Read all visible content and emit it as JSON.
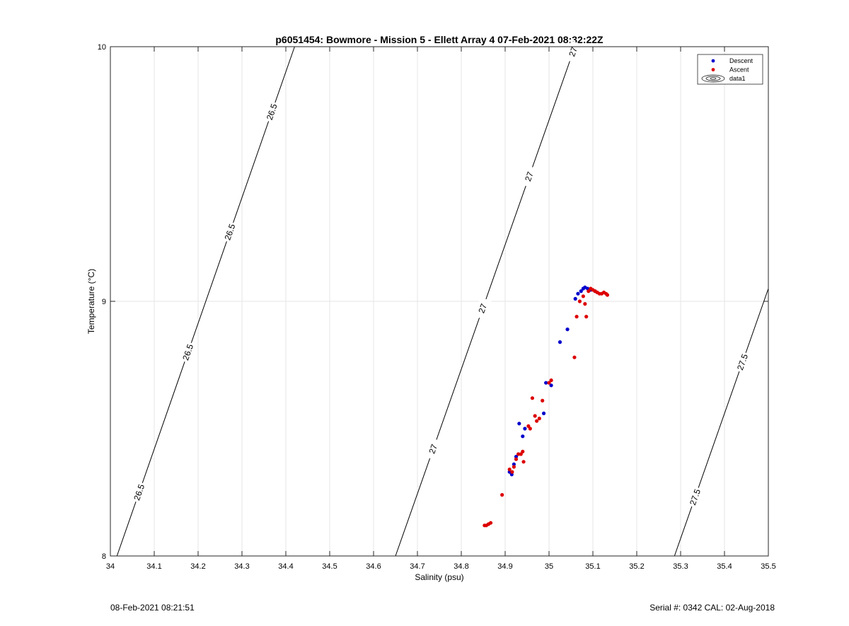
{
  "chart_data": {
    "type": "scatter",
    "title": "p6051454: Bowmore - Mission 5 - Ellett Array 4 07-Feb-2021 08:32:22Z",
    "xlabel": "Salinity (psu)",
    "ylabel": "Temperature (°C)",
    "xlim": [
      34,
      35.5
    ],
    "ylim": [
      8,
      10
    ],
    "x_ticks": [
      "34",
      "34.1",
      "34.2",
      "34.3",
      "34.4",
      "34.5",
      "34.6",
      "34.7",
      "34.8",
      "34.9",
      "35",
      "35.1",
      "35.2",
      "35.3",
      "35.4",
      "35.5"
    ],
    "y_ticks": [
      "8",
      "9",
      "10"
    ],
    "grid": true,
    "legend_position": "top-right",
    "legend": [
      "Descent",
      "Ascent",
      "data1"
    ],
    "series": [
      {
        "name": "Descent",
        "color": "#0000cc",
        "points": [
          [
            34.91,
            8.33
          ],
          [
            34.915,
            8.32
          ],
          [
            34.92,
            8.36
          ],
          [
            34.925,
            8.39
          ],
          [
            34.932,
            8.52
          ],
          [
            34.94,
            8.47
          ],
          [
            34.945,
            8.5
          ],
          [
            34.988,
            8.56
          ],
          [
            34.993,
            8.68
          ],
          [
            35.005,
            8.67
          ],
          [
            35.025,
            8.84
          ],
          [
            35.042,
            8.89
          ],
          [
            35.06,
            9.01
          ],
          [
            35.066,
            9.03
          ],
          [
            35.073,
            9.04
          ],
          [
            35.078,
            9.05
          ],
          [
            35.082,
            9.055
          ],
          [
            35.088,
            9.05
          ],
          [
            35.095,
            9.045
          ],
          [
            35.105,
            9.04
          ]
        ]
      },
      {
        "name": "Ascent",
        "color": "#dd0000",
        "points": [
          [
            34.853,
            8.12
          ],
          [
            34.857,
            8.12
          ],
          [
            34.862,
            8.125
          ],
          [
            34.867,
            8.13
          ],
          [
            34.893,
            8.24
          ],
          [
            34.91,
            8.34
          ],
          [
            34.916,
            8.33
          ],
          [
            34.92,
            8.35
          ],
          [
            34.925,
            8.38
          ],
          [
            34.93,
            8.4
          ],
          [
            34.936,
            8.4
          ],
          [
            34.94,
            8.41
          ],
          [
            34.942,
            8.37
          ],
          [
            34.953,
            8.51
          ],
          [
            34.957,
            8.5
          ],
          [
            34.962,
            8.62
          ],
          [
            34.968,
            8.55
          ],
          [
            34.972,
            8.53
          ],
          [
            34.978,
            8.54
          ],
          [
            34.985,
            8.61
          ],
          [
            35.0,
            8.68
          ],
          [
            35.005,
            8.69
          ],
          [
            35.058,
            8.78
          ],
          [
            35.063,
            8.94
          ],
          [
            35.07,
            9.0
          ],
          [
            35.078,
            9.02
          ],
          [
            35.082,
            8.99
          ],
          [
            35.085,
            8.94
          ],
          [
            35.09,
            9.04
          ],
          [
            35.095,
            9.05
          ],
          [
            35.1,
            9.045
          ],
          [
            35.105,
            9.04
          ],
          [
            35.11,
            9.035
          ],
          [
            35.115,
            9.03
          ],
          [
            35.12,
            9.03
          ],
          [
            35.125,
            9.035
          ],
          [
            35.13,
            9.03
          ],
          [
            35.133,
            9.025
          ]
        ]
      }
    ],
    "contours": [
      {
        "level": "26.5",
        "line": [
          [
            34.015,
            8.0
          ],
          [
            34.42,
            10.0
          ]
        ],
        "labels": [
          0.125,
          0.4,
          0.636,
          0.872
        ]
      },
      {
        "level": "27",
        "line": [
          [
            34.65,
            8.0
          ],
          [
            35.059,
            10.0
          ]
        ],
        "labels": [
          0.21,
          0.486,
          0.745,
          0.99
        ]
      },
      {
        "level": "27.5",
        "line": [
          [
            35.286,
            8.0
          ],
          [
            35.5,
            9.05
          ]
        ],
        "labels": [
          0.22,
          0.725
        ]
      }
    ]
  },
  "footer": {
    "timestamp": "08-Feb-2021 08:21:51",
    "serial_cal": "Serial #: 0342  CAL: 02-Aug-2018"
  }
}
